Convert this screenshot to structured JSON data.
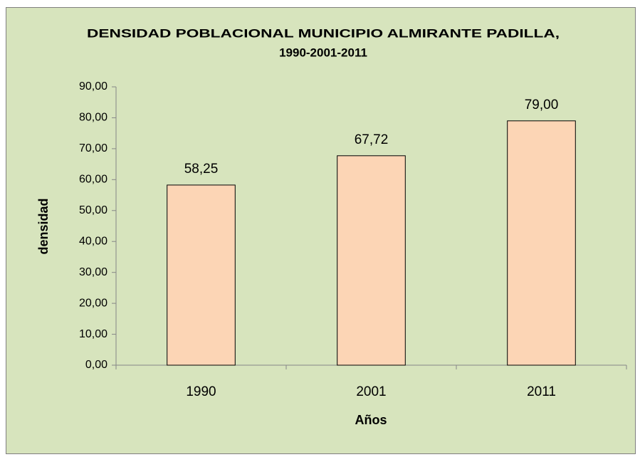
{
  "chart_data": {
    "type": "bar",
    "title": [
      "DENSIDAD POBLACIONAL  MUNICIPIO ALMIRANTE PADILLA,",
      "1990-2001-2011"
    ],
    "x_label": "Años",
    "y_label": "densidad",
    "categories": [
      "1990",
      "2001",
      "2011"
    ],
    "values": [
      58.25,
      67.72,
      79.0
    ],
    "value_labels": [
      "58,25",
      "67,72",
      "79,00"
    ],
    "color": "#fcd5b5",
    "ylim": [
      0,
      90
    ],
    "yticks": [
      {
        "value": 0,
        "label": "0,00"
      },
      {
        "value": 10,
        "label": "10,00"
      },
      {
        "value": 20,
        "label": "20,00"
      },
      {
        "value": 30,
        "label": "30,00"
      },
      {
        "value": 40,
        "label": "40,00"
      },
      {
        "value": 50,
        "label": "50,00"
      },
      {
        "value": 60,
        "label": "60,00"
      },
      {
        "value": 70,
        "label": "70,00"
      },
      {
        "value": 80,
        "label": "80,00"
      },
      {
        "value": 90,
        "label": "90,00"
      }
    ],
    "grid": false,
    "background": "#d7e4bd"
  }
}
